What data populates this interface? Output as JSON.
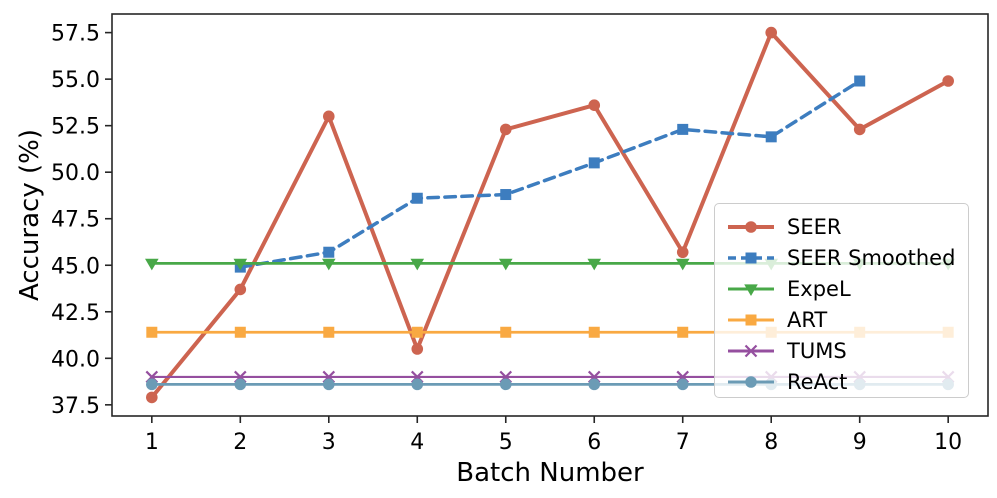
{
  "chart_data": {
    "type": "line",
    "title": "",
    "xlabel": "Batch Number",
    "ylabel": "Accuracy (%)",
    "xlim": [
      0.55,
      10.45
    ],
    "ylim": [
      36.9,
      58.5
    ],
    "xticks": [
      1,
      2,
      3,
      4,
      5,
      6,
      7,
      8,
      9,
      10
    ],
    "xtick_labels": [
      "1",
      "2",
      "3",
      "4",
      "5",
      "6",
      "7",
      "8",
      "9",
      "10"
    ],
    "yticks": [
      37.5,
      40.0,
      42.5,
      45.0,
      47.5,
      50.0,
      52.5,
      55.0,
      57.5
    ],
    "ytick_labels": [
      "37.5",
      "40.0",
      "42.5",
      "45.0",
      "47.5",
      "50.0",
      "52.5",
      "55.0",
      "57.5"
    ],
    "grid": false,
    "legend_position": "lower-right-inside",
    "series": [
      {
        "name": "SEER",
        "color": "#cd6450",
        "linestyle": "solid",
        "linewidth": 4,
        "marker": "circle",
        "x": [
          1,
          2,
          3,
          4,
          5,
          6,
          7,
          8,
          9,
          10
        ],
        "values": [
          37.9,
          43.7,
          53.0,
          40.5,
          52.3,
          53.6,
          45.7,
          57.5,
          52.3,
          54.9
        ]
      },
      {
        "name": "SEER Smoothed",
        "color": "#3d7dbf",
        "linestyle": "dashed",
        "linewidth": 3.5,
        "marker": "square",
        "x": [
          2,
          3,
          4,
          5,
          6,
          7,
          8,
          9
        ],
        "values": [
          44.9,
          45.7,
          48.6,
          48.8,
          50.5,
          52.3,
          51.9,
          54.9
        ]
      },
      {
        "name": "ExpeL",
        "color": "#48a848",
        "linestyle": "solid",
        "linewidth": 2.8,
        "marker": "triangle-down",
        "x": [
          1,
          2,
          3,
          4,
          5,
          6,
          7,
          8,
          9,
          10
        ],
        "values": [
          45.1,
          45.1,
          45.1,
          45.1,
          45.1,
          45.1,
          45.1,
          45.1,
          45.1,
          45.1
        ]
      },
      {
        "name": "ART",
        "color": "#f9a942",
        "linestyle": "solid",
        "linewidth": 2.8,
        "marker": "square",
        "x": [
          1,
          2,
          3,
          4,
          5,
          6,
          7,
          8,
          9,
          10
        ],
        "values": [
          41.4,
          41.4,
          41.4,
          41.4,
          41.4,
          41.4,
          41.4,
          41.4,
          41.4,
          41.4
        ]
      },
      {
        "name": "TUMS",
        "color": "#954f9f",
        "linestyle": "solid",
        "linewidth": 2.2,
        "marker": "x",
        "x": [
          1,
          2,
          3,
          4,
          5,
          6,
          7,
          8,
          9,
          10
        ],
        "values": [
          39.0,
          39.0,
          39.0,
          39.0,
          39.0,
          39.0,
          39.0,
          39.0,
          39.0,
          39.0
        ]
      },
      {
        "name": "ReAct",
        "color": "#6b9bb5",
        "linestyle": "solid",
        "linewidth": 2.8,
        "marker": "circle",
        "x": [
          1,
          2,
          3,
          4,
          5,
          6,
          7,
          8,
          9,
          10
        ],
        "values": [
          38.6,
          38.6,
          38.6,
          38.6,
          38.6,
          38.6,
          38.6,
          38.6,
          38.6,
          38.6
        ]
      }
    ],
    "frame_color": "#262626",
    "legend_border_color": "#cccccc"
  }
}
